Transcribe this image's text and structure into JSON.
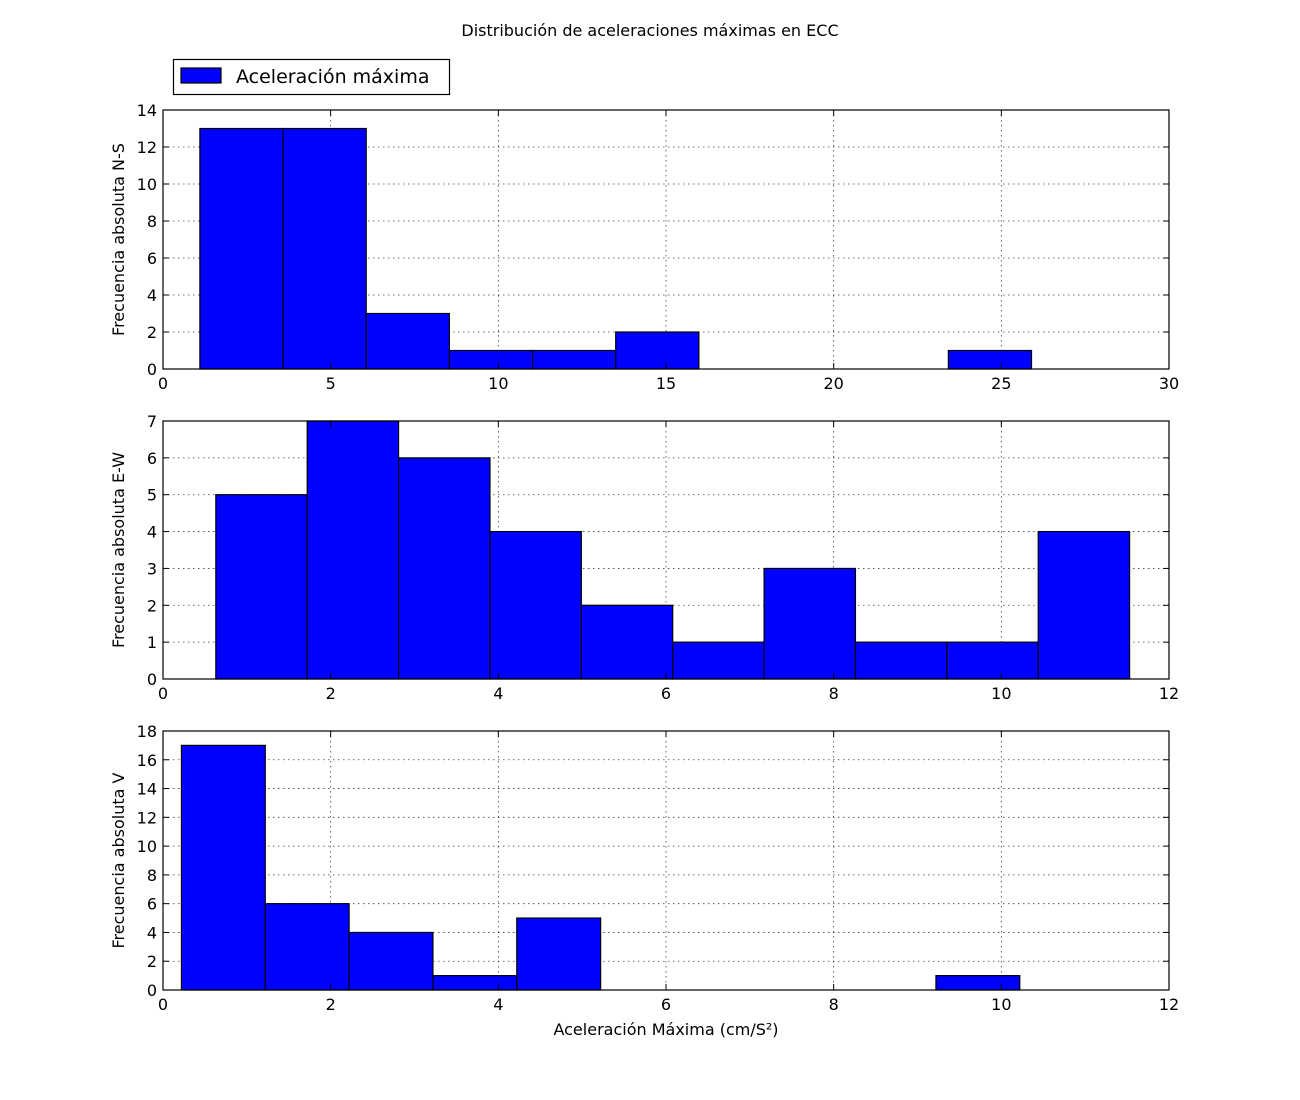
{
  "title": "Distribución de aceleraciones máximas en ECC",
  "legend": {
    "label": "Aceleración máxima",
    "position": "upper-left, above first plot"
  },
  "colors": {
    "bar_fill": "#0000ff",
    "edge": "#000000"
  },
  "chart_data": [
    {
      "type": "bar",
      "histogram": true,
      "title": "",
      "xlabel": "",
      "ylabel": "Frecuencia absoluta N-S",
      "xlim": [
        0,
        30
      ],
      "ylim": [
        0,
        14
      ],
      "xticks": [
        0,
        5,
        10,
        15,
        20,
        25,
        30
      ],
      "yticks": [
        0,
        2,
        4,
        6,
        8,
        10,
        12,
        14
      ],
      "grid": true,
      "bin_edges": [
        1.1,
        3.58,
        6.06,
        8.54,
        11.02,
        13.5,
        15.98,
        18.46,
        20.94,
        23.42,
        25.9
      ],
      "values": [
        13,
        13,
        3,
        1,
        1,
        2,
        0,
        0,
        0,
        1
      ],
      "series": [
        {
          "name": "Aceleración máxima"
        }
      ]
    },
    {
      "type": "bar",
      "histogram": true,
      "title": "",
      "xlabel": "",
      "ylabel": "Frecuencia absoluta E-W",
      "xlim": [
        0,
        12
      ],
      "ylim": [
        0,
        7
      ],
      "xticks": [
        0,
        2,
        4,
        6,
        8,
        10,
        12
      ],
      "yticks": [
        0,
        1,
        2,
        3,
        4,
        5,
        6,
        7
      ],
      "grid": true,
      "bin_edges": [
        0.63,
        1.72,
        2.81,
        3.9,
        4.99,
        6.08,
        7.17,
        8.26,
        9.35,
        10.44,
        11.53
      ],
      "values": [
        5,
        7,
        6,
        4,
        2,
        1,
        3,
        1,
        1,
        4
      ]
    },
    {
      "type": "bar",
      "histogram": true,
      "title": "",
      "xlabel": "Aceleración Máxima (cm/S²)",
      "ylabel": "Frecuencia absoluta V",
      "xlim": [
        0,
        12
      ],
      "ylim": [
        0,
        18
      ],
      "xticks": [
        0,
        2,
        4,
        6,
        8,
        10,
        12
      ],
      "yticks": [
        0,
        2,
        4,
        6,
        8,
        10,
        12,
        14,
        16,
        18
      ],
      "grid": true,
      "bin_edges": [
        0.22,
        1.22,
        2.22,
        3.22,
        4.22,
        5.22,
        6.22,
        7.22,
        8.22,
        9.22,
        10.22
      ],
      "values": [
        17,
        6,
        4,
        1,
        5,
        0,
        0,
        0,
        0,
        1
      ]
    }
  ]
}
